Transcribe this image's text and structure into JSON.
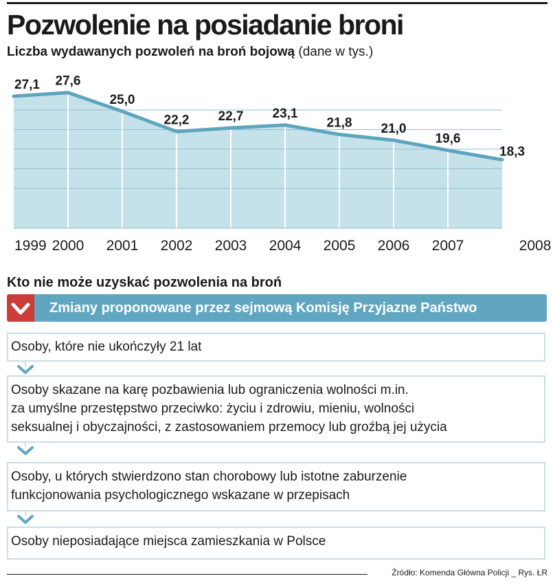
{
  "header": {
    "title": "Pozwolenie na posiadanie broni",
    "subtitle": "Liczba wydawanych pozwoleń na broń bojową",
    "unit_note": "(dane w tys.)"
  },
  "chart_data": {
    "type": "area",
    "title": "Liczba wydawanych pozwoleń na broń bojową",
    "ylabel": "dane w tys.",
    "xlabel": "",
    "categories": [
      "1999",
      "2000",
      "2001",
      "2002",
      "2003",
      "2004",
      "2005",
      "2006",
      "2007",
      "2008"
    ],
    "values": [
      27.1,
      27.6,
      25.0,
      22.2,
      22.7,
      23.1,
      21.8,
      21.0,
      19.6,
      18.3
    ],
    "labels": [
      "27,1",
      "27,6",
      "25,0",
      "22,2",
      "22,7",
      "23,1",
      "21,8",
      "21,0",
      "19,6",
      "18,3"
    ],
    "ylim": [
      8.8,
      29.0
    ],
    "grid": true,
    "colors": {
      "fill": "#c5e1ea",
      "line": "#5da4be",
      "grid": "#8fbfd0",
      "text": "#1a1a1a"
    }
  },
  "section": {
    "title": "Kto nie może uzyskać pozwolenia na broń",
    "banner": "Zmiany proponowane przez sejmową Komisję Przyjazne Państwo",
    "items": [
      {
        "lines": [
          "Osoby, które nie ukończyły 21 lat"
        ]
      },
      {
        "lines": [
          "Osoby skazane na karę pozbawienia lub ograniczenia wolności m.in.",
          "za umyślne przestępstwo przeciwko: życiu i zdrowiu, mieniu, wolności",
          "seksualnej i obyczajności, z zastosowaniem przemocy lub groźbą jej użycia"
        ]
      },
      {
        "lines": [
          "Osoby, u których stwierdzono stan chorobowy lub istotne zaburzenie",
          "funkcjonowania psychologicznego wskazane w przepisach"
        ]
      },
      {
        "lines": [
          "Osoby nieposiadające miejsca zamieszkania w Polsce"
        ]
      }
    ]
  },
  "footer": {
    "source": "Źródło: Komenda Główna Policji _ Rys. ŁR"
  },
  "colors": {
    "banner": "#60a6c0",
    "banner_mark": "#cc3d3a",
    "box_border": "#c6dfe8",
    "chevron": "#60a6c0"
  }
}
